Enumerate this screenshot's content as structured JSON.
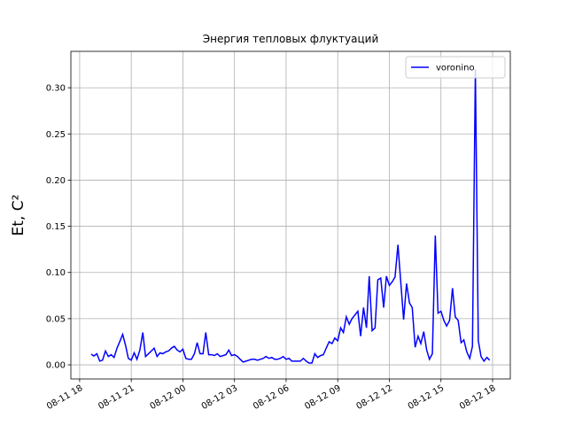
{
  "chart_data": {
    "type": "line",
    "title": "Энергия тепловых флуктуаций",
    "y_label": "Et, C²",
    "x": [
      18.67,
      18.83,
      19,
      19.17,
      19.33,
      19.5,
      19.67,
      19.83,
      20,
      20.17,
      20.33,
      20.5,
      20.67,
      20.83,
      21,
      21.17,
      21.33,
      21.5,
      21.67,
      21.83,
      22,
      22.17,
      22.33,
      22.5,
      22.67,
      22.83,
      23,
      23.17,
      23.33,
      23.5,
      23.67,
      23.83,
      24,
      24.17,
      24.33,
      24.5,
      24.67,
      24.83,
      25,
      25.17,
      25.33,
      25.5,
      25.67,
      25.83,
      26,
      26.17,
      26.33,
      26.5,
      26.67,
      26.83,
      27,
      27.17,
      27.33,
      27.5,
      27.67,
      27.83,
      28,
      28.17,
      28.33,
      28.5,
      28.67,
      28.83,
      29,
      29.17,
      29.33,
      29.5,
      29.67,
      29.83,
      30,
      30.17,
      30.33,
      30.5,
      30.67,
      30.83,
      31,
      31.17,
      31.33,
      31.5,
      31.67,
      31.83,
      32,
      32.17,
      32.33,
      32.5,
      32.67,
      32.83,
      33,
      33.17,
      33.33,
      33.5,
      33.67,
      33.83,
      34,
      34.17,
      34.33,
      34.5,
      34.67,
      34.83,
      35,
      35.17,
      35.33,
      35.5,
      35.67,
      35.83,
      36,
      36.17,
      36.33,
      36.5,
      36.67,
      36.83,
      37,
      37.17,
      37.33,
      37.5,
      37.67,
      37.83,
      38,
      38.17,
      38.33,
      38.5,
      38.67,
      38.83,
      39,
      39.17,
      39.33,
      39.5,
      39.67,
      39.83,
      40,
      40.17,
      40.33,
      40.5,
      40.67,
      40.83,
      41,
      41.17,
      41.33,
      41.5,
      41.67,
      41.83
    ],
    "series": [
      {
        "name": "voronino",
        "color": "#0000ff",
        "values": [
          0.0115,
          0.0096,
          0.012,
          0.004,
          0.005,
          0.015,
          0.009,
          0.011,
          0.008,
          0.018,
          0.025,
          0.033,
          0.021,
          0.007,
          0.005,
          0.013,
          0.006,
          0.016,
          0.035,
          0.009,
          0.012,
          0.015,
          0.018,
          0.009,
          0.013,
          0.012,
          0.014,
          0.015,
          0.018,
          0.02,
          0.016,
          0.014,
          0.017,
          0.007,
          0.006,
          0.006,
          0.012,
          0.024,
          0.012,
          0.012,
          0.035,
          0.011,
          0.011,
          0.01,
          0.012,
          0.009,
          0.01,
          0.011,
          0.016,
          0.01,
          0.011,
          0.009,
          0.006,
          0.003,
          0.004,
          0.005,
          0.006,
          0.006,
          0.005,
          0.006,
          0.007,
          0.009,
          0.007,
          0.008,
          0.006,
          0.006,
          0.007,
          0.009,
          0.006,
          0.007,
          0.004,
          0.004,
          0.004,
          0.004,
          0.007,
          0.004,
          0.002,
          0.002,
          0.012,
          0.008,
          0.01,
          0.011,
          0.018,
          0.025,
          0.023,
          0.029,
          0.026,
          0.04,
          0.035,
          0.052,
          0.044,
          0.05,
          0.054,
          0.058,
          0.031,
          0.062,
          0.04,
          0.096,
          0.037,
          0.04,
          0.092,
          0.094,
          0.062,
          0.096,
          0.086,
          0.09,
          0.095,
          0.13,
          0.088,
          0.049,
          0.088,
          0.067,
          0.062,
          0.019,
          0.031,
          0.023,
          0.036,
          0.016,
          0.006,
          0.012,
          0.14,
          0.056,
          0.058,
          0.048,
          0.042,
          0.048,
          0.083,
          0.052,
          0.048,
          0.024,
          0.027,
          0.014,
          0.007,
          0.02,
          0.32,
          0.026,
          0.009,
          0.004,
          0.008,
          0.005
        ]
      }
    ],
    "xlim": [
      17.49,
      43.03
    ],
    "ylim": [
      -0.0153,
      0.3394
    ],
    "xticks": [
      {
        "value": 18,
        "label": "08-11 18"
      },
      {
        "value": 21,
        "label": "08-11 21"
      },
      {
        "value": 24,
        "label": "08-12 00"
      },
      {
        "value": 27,
        "label": "08-12 03"
      },
      {
        "value": 30,
        "label": "08-12 06"
      },
      {
        "value": 33,
        "label": "08-12 09"
      },
      {
        "value": 36,
        "label": "08-12 12"
      },
      {
        "value": 39,
        "label": "08-12 15"
      },
      {
        "value": 42,
        "label": "08-12 18"
      }
    ],
    "yticks": [
      {
        "value": 0,
        "label": "0.00"
      },
      {
        "value": 0.05,
        "label": "0.05"
      },
      {
        "value": 0.1,
        "label": "0.10"
      },
      {
        "value": 0.15,
        "label": "0.15"
      },
      {
        "value": 0.2,
        "label": "0.20"
      },
      {
        "value": 0.25,
        "label": "0.25"
      },
      {
        "value": 0.3,
        "label": "0.30"
      }
    ],
    "grid": true,
    "legend": "upper right"
  }
}
